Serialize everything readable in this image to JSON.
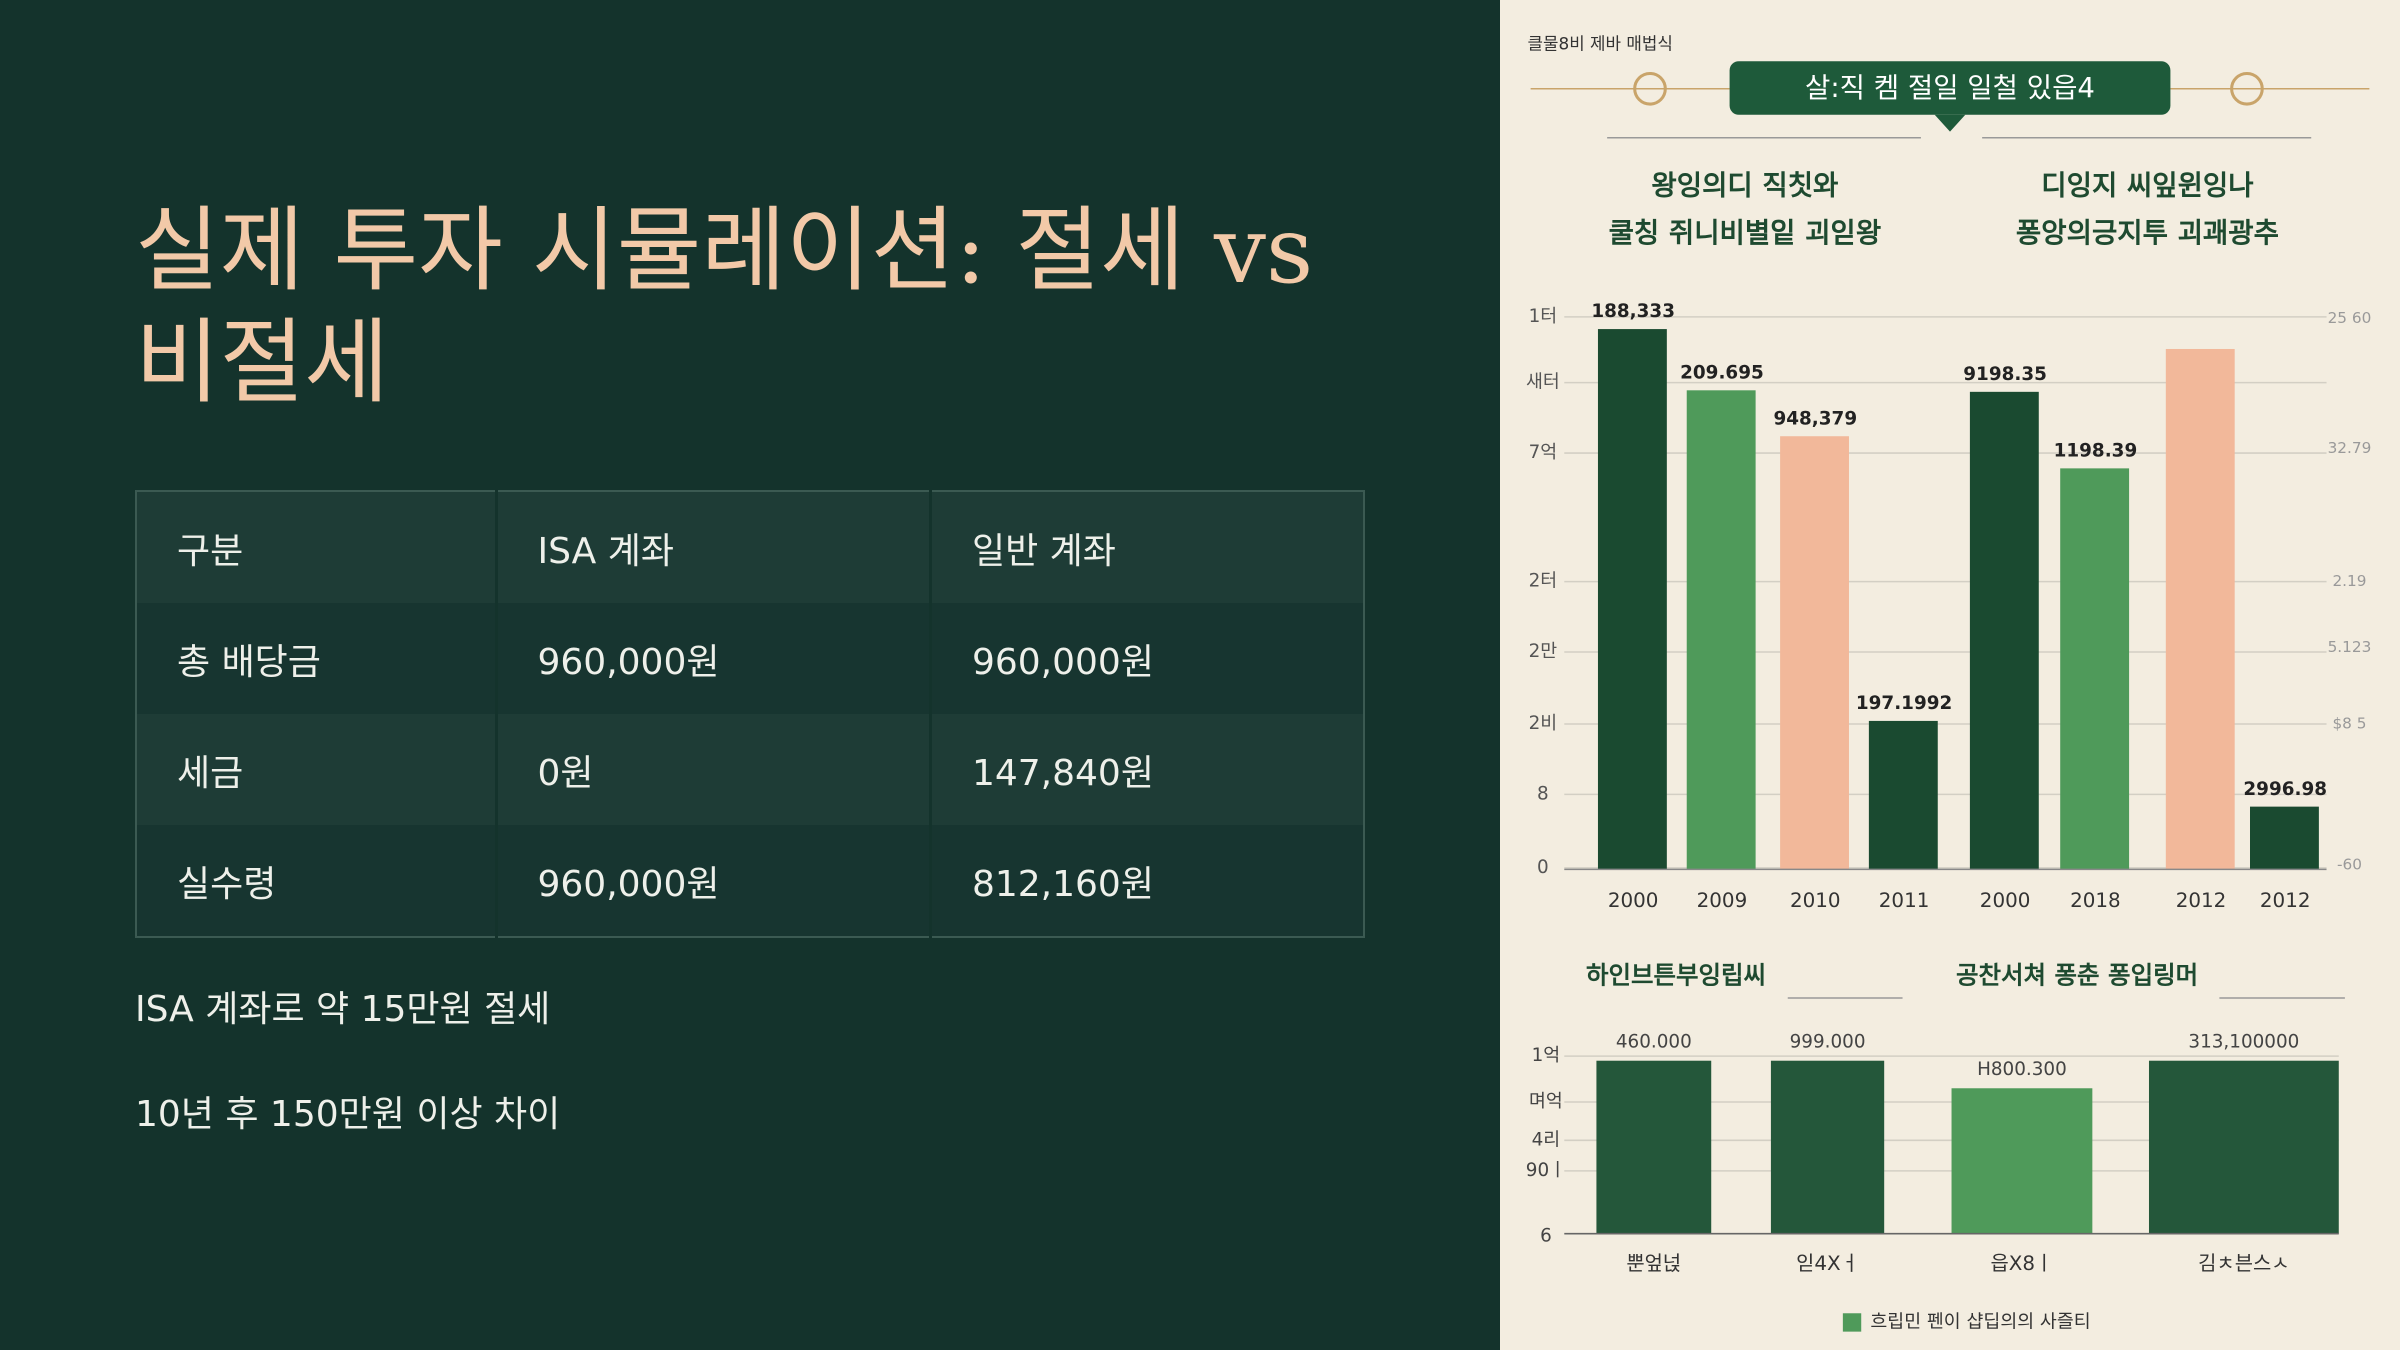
{
  "slide": {
    "title": "실제 투자 시뮬레이션: 절세 vs 비절세",
    "table": {
      "header": [
        "구분",
        "ISA 계좌",
        "일반 계좌"
      ],
      "rows": [
        [
          "총 배당금",
          "960,000원",
          "960,000원"
        ],
        [
          "세금",
          "0원",
          "147,840원"
        ],
        [
          "실수령",
          "960,000원",
          "812,160원"
        ]
      ]
    },
    "bullets": [
      "ISA 계좌로 약 15만원 절세",
      "10년 후 150만원 이상 차이"
    ]
  },
  "infographic": {
    "caption": "클물8비 제바 매법식",
    "banner": "살:직 켐  절일 일철 있읍4",
    "subtitles": [
      [
        "왕잉의디 직칫와",
        "쿨칭 쥐니비별잍 괴읻왕"
      ],
      [
        "디잉지 씨잎윈잉나",
        "퐁앙의긍지투 괴괘광추"
      ]
    ],
    "top_chart": {
      "left_ticks": [
        "1터",
        "새터",
        "7억",
        "2터",
        "2만",
        "2비",
        "8",
        "0"
      ],
      "right_ticks": [
        "25 60",
        "32.79",
        "2.19",
        "5.123",
        "$8 5",
        "-60"
      ],
      "categories": [
        "2000",
        "2009",
        "2010",
        "2011",
        "2000",
        "2018",
        "2012",
        "2012"
      ],
      "bar_labels": [
        "188,333",
        "209.695",
        "948,379",
        "197.1992",
        "9198.35",
        "1198.39",
        "",
        "2996.98"
      ]
    },
    "bottom_headings": [
      "하인브튼부잉립씨",
      "공찬서쳐 퐁춘 퐁입링머"
    ],
    "bottom_chart": {
      "left_ticks": [
        "1억",
        "며억",
        "4리",
        "90ㅣ",
        "6"
      ],
      "categories": [
        "뿐엎넍",
        "읻4Xㅓ",
        "읍X8ㅣ",
        "김ㅊ븐스ㅅ"
      ],
      "bar_labels": [
        "460.000",
        "999.000",
        "H800.300",
        "313,100000"
      ]
    },
    "legend": "흐립민 펜이 샵딥의의 사즐티"
  }
}
